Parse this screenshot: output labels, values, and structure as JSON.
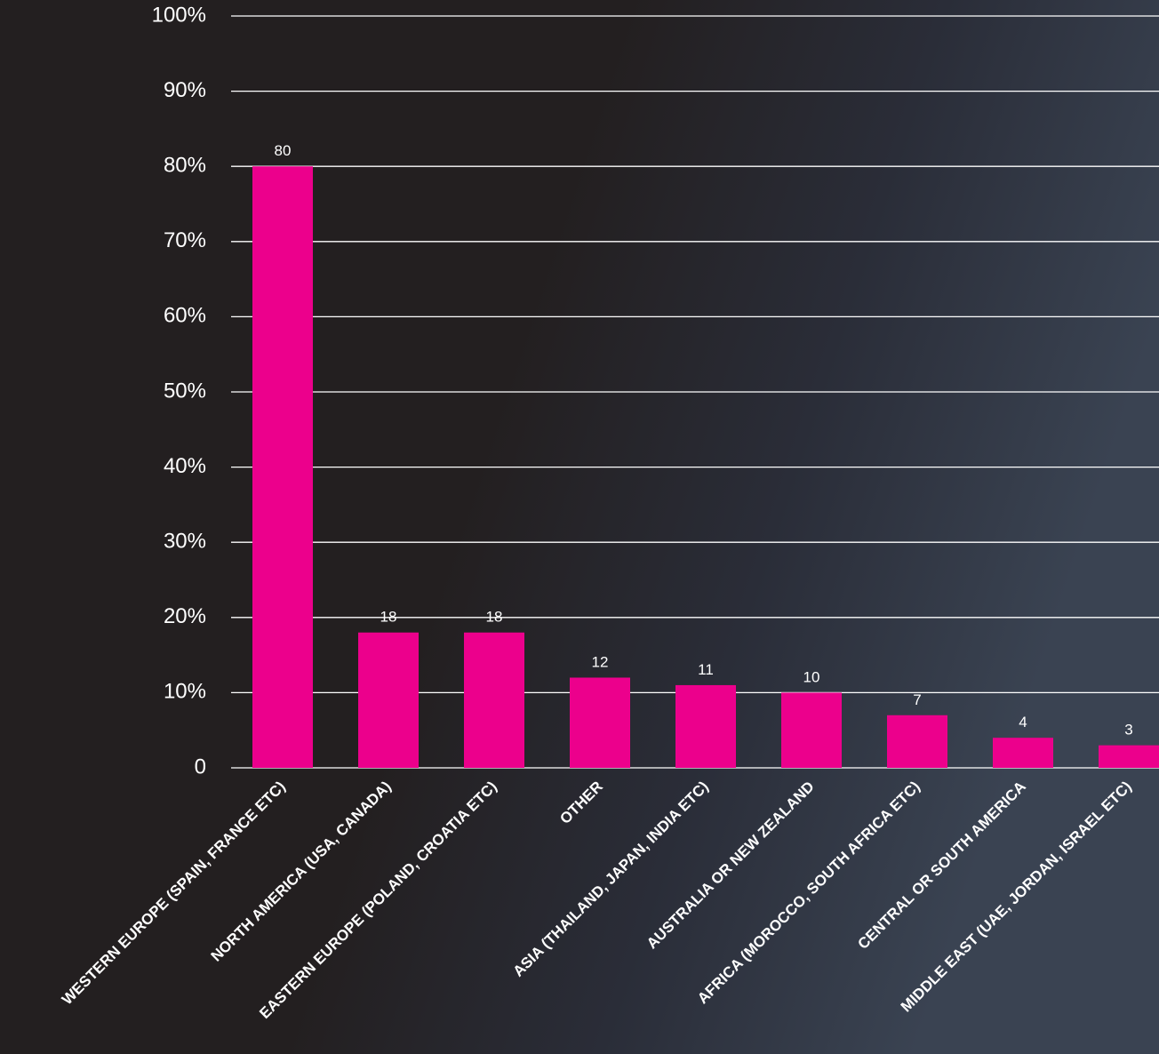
{
  "chart_data": {
    "type": "bar",
    "categories": [
      "WESTERN EUROPE (SPAIN, FRANCE ETC)",
      "NORTH AMERICA (USA, CANADA)",
      "EASTERN EUROPE (POLAND, CROATIA ETC)",
      "OTHER",
      "ASIA (THAILAND, JAPAN, INDIA ETC)",
      "AUSTRALIA OR NEW ZEALAND",
      "AFRICA (MOROCCO, SOUTH AFRICA ETC)",
      "CENTRAL OR SOUTH AMERICA",
      "MIDDLE EAST (UAE, JORDAN, ISRAEL ETC)"
    ],
    "values": [
      80,
      18,
      18,
      12,
      11,
      10,
      7,
      4,
      3
    ],
    "color": "#ec008c",
    "ylim": [
      0,
      100
    ],
    "yticks": [
      0,
      {
        "value": 10,
        "label": "10%"
      },
      {
        "value": 20,
        "label": "20%"
      },
      {
        "value": 30,
        "label": "30%"
      },
      {
        "value": 40,
        "label": "40%"
      },
      {
        "value": 50,
        "label": "50%"
      },
      {
        "value": 60,
        "label": "60%"
      },
      {
        "value": 70,
        "label": "70%"
      },
      {
        "value": 80,
        "label": "80%"
      },
      {
        "value": 90,
        "label": "90%"
      },
      {
        "value": 100,
        "label": "100%"
      }
    ],
    "grid": true
  }
}
